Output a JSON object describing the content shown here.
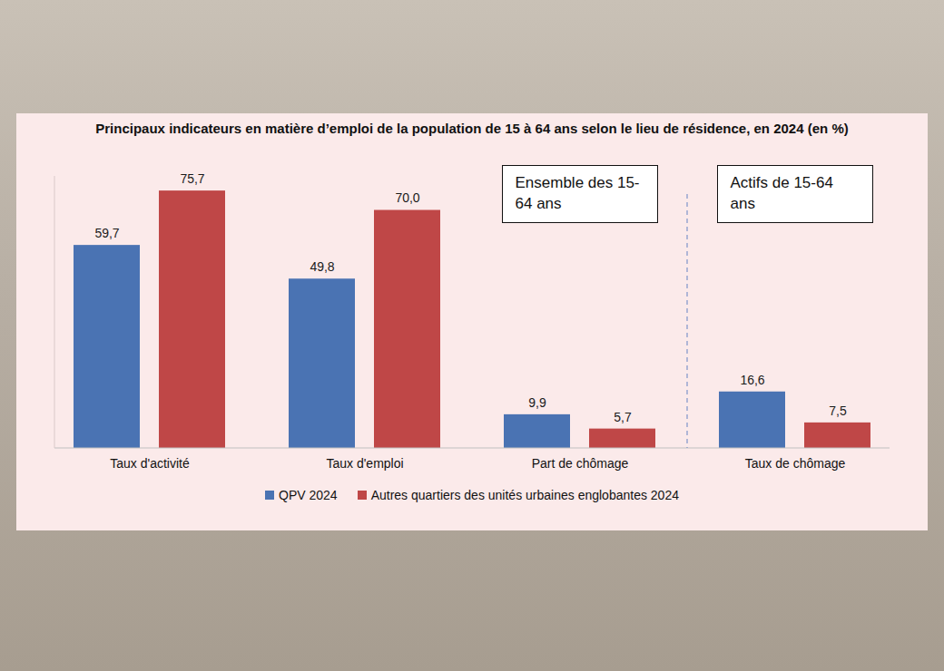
{
  "chart_data": {
    "type": "bar",
    "title": "Principaux indicateurs en matière d’emploi de la population de 15 à 64 ans selon le lieu de résidence, en 2024 (en %)",
    "categories": [
      "Taux d'activité",
      "Taux d'emploi",
      "Part de chômage",
      "Taux de chômage"
    ],
    "series": [
      {
        "name": "QPV 2024",
        "color": "#4a73b3",
        "values": [
          59.7,
          49.8,
          9.9,
          16.6
        ],
        "value_labels": [
          "59,7",
          "49,8",
          "9,9",
          "16,6"
        ]
      },
      {
        "name": "Autres quartiers des unités urbaines englobantes 2024",
        "color": "#bf4747",
        "values": [
          75.7,
          70.0,
          5.7,
          7.5
        ],
        "value_labels": [
          "75,7",
          "70,0",
          "5,7",
          "7,5"
        ]
      }
    ],
    "annotations": [
      "Ensemble des 15-64 ans",
      "Actifs de 15-64 ans"
    ],
    "ylim": [
      0,
      80
    ],
    "data_labels": true,
    "tick_labels": "x",
    "grid": false,
    "legend": "bottom"
  }
}
